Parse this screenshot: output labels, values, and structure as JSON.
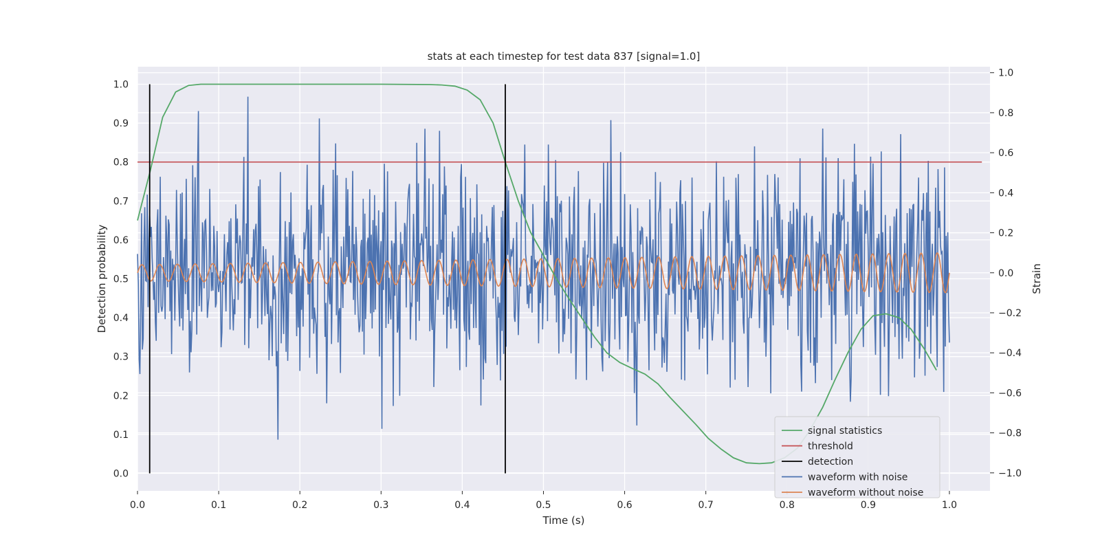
{
  "chart_data": {
    "type": "line",
    "title": "stats at each timestep for test data 837 [signal=1.0]",
    "xlabel": "Time (s)",
    "ylabel_left": "Detection probability",
    "ylabel_right": "Strain",
    "xlim": [
      0.0,
      1.05
    ],
    "ylim_left": [
      -0.045,
      1.045
    ],
    "ylim_right": [
      -1.09,
      1.03
    ],
    "xticks": [
      "0.0",
      "0.1",
      "0.2",
      "0.3",
      "0.4",
      "0.5",
      "0.6",
      "0.7",
      "0.8",
      "0.9",
      "1.0"
    ],
    "xtick_values": [
      0.0,
      0.1,
      0.2,
      0.3,
      0.4,
      0.5,
      0.6,
      0.7,
      0.8,
      0.9,
      1.0
    ],
    "yticks_left": [
      "0.0",
      "0.1",
      "0.2",
      "0.3",
      "0.4",
      "0.5",
      "0.6",
      "0.7",
      "0.8",
      "0.9",
      "1.0"
    ],
    "ytick_values_left": [
      0.0,
      0.1,
      0.2,
      0.3,
      0.4,
      0.5,
      0.6,
      0.7,
      0.8,
      0.9,
      1.0
    ],
    "yticks_right": [
      "−1.0",
      "−0.8",
      "−0.6",
      "−0.4",
      "−0.2",
      "0.0",
      "0.2",
      "0.4",
      "0.6",
      "0.8",
      "1.0"
    ],
    "ytick_values_right": [
      -1.0,
      -0.8,
      -0.6,
      -0.4,
      -0.2,
      0.0,
      0.2,
      0.4,
      0.6,
      0.8,
      1.0
    ],
    "grid": true,
    "legend_position": "lower-right",
    "colors": {
      "signal_statistics": "#55a868",
      "threshold": "#c44e52",
      "detection": "#000000",
      "waveform_with_noise": "#4c72b0",
      "waveform_without_noise": "#dd8452",
      "background": "#eaeaf2",
      "grid": "#ffffff"
    },
    "series": [
      {
        "name": "signal statistics",
        "axis": "left",
        "x": [
          0.0,
          0.016,
          0.031,
          0.047,
          0.063,
          0.078,
          0.094,
          0.109,
          0.125,
          0.2,
          0.3,
          0.36,
          0.375,
          0.391,
          0.406,
          0.422,
          0.438,
          0.453,
          0.469,
          0.484,
          0.5,
          0.516,
          0.531,
          0.547,
          0.563,
          0.578,
          0.594,
          0.609,
          0.625,
          0.641,
          0.656,
          0.672,
          0.688,
          0.703,
          0.719,
          0.734,
          0.75,
          0.766,
          0.781,
          0.797,
          0.813,
          0.828,
          0.844,
          0.859,
          0.875,
          0.891,
          0.906,
          0.922,
          0.938,
          0.953,
          0.969,
          0.984
        ],
        "y": [
          0.65,
          0.78,
          0.915,
          0.98,
          0.997,
          1.0,
          1.0,
          1.0,
          1.0,
          1.0,
          1.0,
          0.999,
          0.998,
          0.995,
          0.985,
          0.96,
          0.9,
          0.8,
          0.7,
          0.62,
          0.56,
          0.5,
          0.45,
          0.4,
          0.35,
          0.31,
          0.285,
          0.27,
          0.255,
          0.23,
          0.195,
          0.16,
          0.125,
          0.09,
          0.062,
          0.04,
          0.027,
          0.025,
          0.027,
          0.04,
          0.065,
          0.11,
          0.17,
          0.24,
          0.31,
          0.37,
          0.405,
          0.41,
          0.4,
          0.37,
          0.32,
          0.265
        ]
      },
      {
        "name": "threshold",
        "axis": "left",
        "x": [
          0.0,
          1.04
        ],
        "y": [
          0.8,
          0.8
        ]
      },
      {
        "name": "detection",
        "axis": "left",
        "segments": [
          0.015,
          0.453
        ],
        "y_range": [
          0.0,
          1.0
        ]
      },
      {
        "name": "waveform with noise",
        "axis": "right",
        "x_range": [
          0.0,
          1.0
        ],
        "points": 1000,
        "noise_std": 0.27,
        "y_range": [
          -1.0,
          1.0
        ]
      },
      {
        "name": "waveform without noise",
        "axis": "right",
        "x_range": [
          0.0,
          1.0
        ],
        "cycles": 48,
        "amp_start": 0.04,
        "amp_end": 0.1
      }
    ],
    "legend": [
      "signal statistics",
      "threshold",
      "detection",
      "waveform with noise",
      "waveform without noise"
    ]
  }
}
